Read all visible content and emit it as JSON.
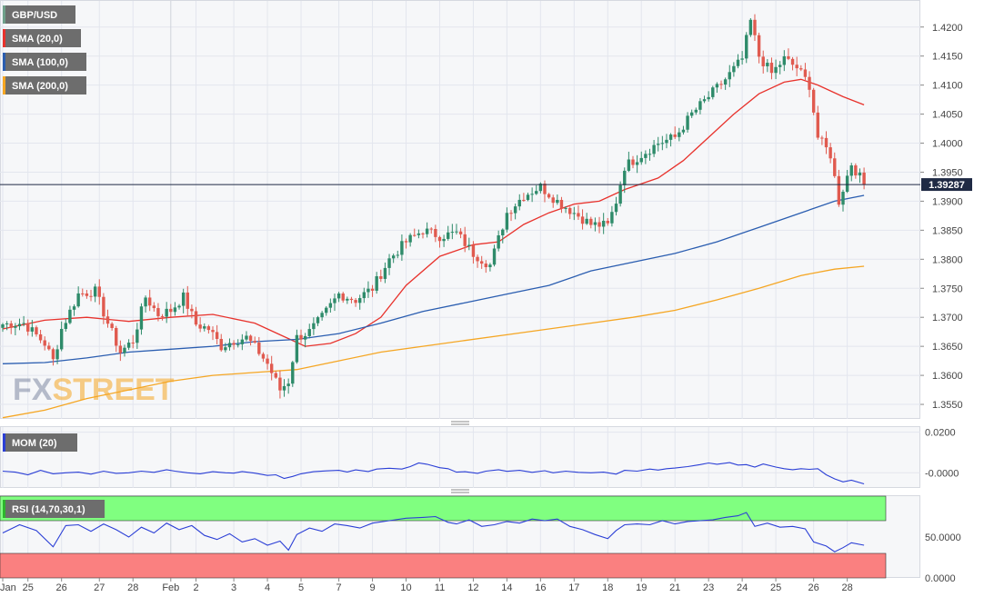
{
  "chart_data": {
    "type": "candlestick",
    "symbol": "GBP/USD",
    "watermark": "FXSTREET",
    "last_price": "1.39287",
    "last_value": 1.39287,
    "colors": {
      "up": "#2e8b6a",
      "down": "#e05a4f",
      "sma20": "#e8322c",
      "sma100": "#2a5db0",
      "sma200": "#f5a623",
      "mom": "#2b3fd6",
      "rsi": "#2b3fd6",
      "rsi_overbought": "#80ff80",
      "rsi_oversold": "#fa8080",
      "grid": "#e3e6ee",
      "background": "#f6f7f9",
      "legend_bg": "#6d6d6d"
    },
    "price_axis": {
      "ylim": [
        1.3525,
        1.4245
      ],
      "ticks": [
        "1.4200",
        "1.4150",
        "1.4100",
        "1.4050",
        "1.4000",
        "1.3950",
        "1.3900",
        "1.3850",
        "1.3800",
        "1.3750",
        "1.3700",
        "1.3650",
        "1.3600",
        "1.3550"
      ],
      "tick_values": [
        1.42,
        1.415,
        1.41,
        1.405,
        1.4,
        1.395,
        1.39,
        1.385,
        1.38,
        1.375,
        1.37,
        1.365,
        1.36,
        1.355
      ]
    },
    "x_axis": {
      "labels": [
        "Jan",
        "25",
        "26",
        "27",
        "28",
        "Feb",
        "2",
        "3",
        "4",
        "5",
        "7",
        "9",
        "10",
        "11",
        "12",
        "14",
        "16",
        "17",
        "18",
        "19",
        "21",
        "23",
        "24",
        "25",
        "26",
        "28"
      ],
      "label_bar": [
        0,
        6,
        14,
        23,
        31,
        40,
        46,
        55,
        63,
        71,
        80,
        88,
        96,
        104,
        112,
        120,
        128,
        136,
        144,
        152,
        160,
        168,
        176,
        184,
        193,
        201
      ]
    },
    "legends": {
      "main": [
        {
          "label": "GBP/USD",
          "color": "#6fa08a"
        },
        {
          "label": "SMA (20,0)",
          "color": "#e8322c"
        },
        {
          "label": "SMA (100,0)",
          "color": "#2a5db0"
        },
        {
          "label": "SMA (200,0)",
          "color": "#f5a623"
        }
      ],
      "mom": {
        "label": "MOM (20)",
        "color": "#2b3fd6"
      },
      "rsi": {
        "label": "RSI (14,70,30,1)",
        "color": "#2db52d"
      }
    },
    "mom_axis": {
      "ticks": [
        "0.0200",
        "-0.0000"
      ],
      "tick_values": [
        0.02,
        0.0
      ],
      "ylim": [
        -0.0075,
        0.0225
      ]
    },
    "rsi_axis": {
      "ticks": [
        "50.0000",
        "0.0000"
      ],
      "tick_values": [
        50,
        0
      ],
      "ylim": [
        0,
        100
      ],
      "overbought": 70,
      "oversold": 30
    },
    "anchors": [
      [
        0,
        1.3688
      ],
      [
        5,
        1.369
      ],
      [
        10,
        1.3655
      ],
      [
        12,
        1.3625
      ],
      [
        14,
        1.368
      ],
      [
        18,
        1.374
      ],
      [
        22,
        1.3745
      ],
      [
        25,
        1.369
      ],
      [
        28,
        1.364
      ],
      [
        31,
        1.366
      ],
      [
        34,
        1.3735
      ],
      [
        37,
        1.3705
      ],
      [
        40,
        1.3712
      ],
      [
        43,
        1.3735
      ],
      [
        46,
        1.3688
      ],
      [
        49,
        1.368
      ],
      [
        52,
        1.365
      ],
      [
        55,
        1.366
      ],
      [
        58,
        1.3665
      ],
      [
        61,
        1.364
      ],
      [
        63,
        1.362
      ],
      [
        66,
        1.3575
      ],
      [
        68,
        1.359
      ],
      [
        70,
        1.3665
      ],
      [
        73,
        1.3675
      ],
      [
        76,
        1.37
      ],
      [
        80,
        1.374
      ],
      [
        84,
        1.373
      ],
      [
        88,
        1.375
      ],
      [
        92,
        1.38
      ],
      [
        96,
        1.383
      ],
      [
        100,
        1.385
      ],
      [
        104,
        1.384
      ],
      [
        108,
        1.3845
      ],
      [
        112,
        1.381
      ],
      [
        116,
        1.379
      ],
      [
        120,
        1.388
      ],
      [
        124,
        1.391
      ],
      [
        128,
        1.3925
      ],
      [
        132,
        1.39
      ],
      [
        136,
        1.388
      ],
      [
        140,
        1.386
      ],
      [
        144,
        1.3858
      ],
      [
        146,
        1.39
      ],
      [
        148,
        1.396
      ],
      [
        152,
        1.398
      ],
      [
        156,
        1.4
      ],
      [
        160,
        1.401
      ],
      [
        164,
        1.405
      ],
      [
        168,
        1.408
      ],
      [
        172,
        1.411
      ],
      [
        176,
        1.4145
      ],
      [
        178,
        1.421
      ],
      [
        180,
        1.415
      ],
      [
        183,
        1.412
      ],
      [
        186,
        1.4145
      ],
      [
        189,
        1.413
      ],
      [
        192,
        1.41
      ],
      [
        194,
        1.401
      ],
      [
        197,
        1.398
      ],
      [
        199,
        1.39
      ],
      [
        202,
        1.3965
      ],
      [
        205,
        1.3929
      ]
    ],
    "series": [
      {
        "name": "SMA (20,0)",
        "color": "#e8322c",
        "points": [
          [
            0,
            1.368
          ],
          [
            10,
            1.3695
          ],
          [
            20,
            1.37
          ],
          [
            30,
            1.3693
          ],
          [
            40,
            1.37
          ],
          [
            50,
            1.3705
          ],
          [
            60,
            1.369
          ],
          [
            66,
            1.367
          ],
          [
            72,
            1.365
          ],
          [
            78,
            1.3655
          ],
          [
            84,
            1.3672
          ],
          [
            90,
            1.37
          ],
          [
            96,
            1.3755
          ],
          [
            104,
            1.3805
          ],
          [
            112,
            1.3825
          ],
          [
            118,
            1.383
          ],
          [
            124,
            1.386
          ],
          [
            130,
            1.388
          ],
          [
            136,
            1.3895
          ],
          [
            142,
            1.39
          ],
          [
            148,
            1.392
          ],
          [
            156,
            1.394
          ],
          [
            162,
            1.397
          ],
          [
            168,
            1.401
          ],
          [
            174,
            1.405
          ],
          [
            180,
            1.4085
          ],
          [
            186,
            1.4105
          ],
          [
            190,
            1.411
          ],
          [
            194,
            1.41
          ],
          [
            200,
            1.408
          ],
          [
            205,
            1.4066
          ]
        ]
      },
      {
        "name": "SMA (100,0)",
        "color": "#2a5db0",
        "points": [
          [
            0,
            1.362
          ],
          [
            10,
            1.3622
          ],
          [
            20,
            1.363
          ],
          [
            30,
            1.364
          ],
          [
            40,
            1.3645
          ],
          [
            50,
            1.365
          ],
          [
            60,
            1.3658
          ],
          [
            70,
            1.3662
          ],
          [
            80,
            1.3672
          ],
          [
            90,
            1.369
          ],
          [
            100,
            1.371
          ],
          [
            110,
            1.3725
          ],
          [
            120,
            1.374
          ],
          [
            130,
            1.3755
          ],
          [
            140,
            1.378
          ],
          [
            150,
            1.3795
          ],
          [
            160,
            1.381
          ],
          [
            170,
            1.383
          ],
          [
            180,
            1.3855
          ],
          [
            190,
            1.388
          ],
          [
            198,
            1.39
          ],
          [
            205,
            1.391
          ]
        ]
      },
      {
        "name": "SMA (200,0)",
        "color": "#f5a623",
        "points": [
          [
            0,
            1.3527
          ],
          [
            10,
            1.354
          ],
          [
            20,
            1.356
          ],
          [
            30,
            1.3575
          ],
          [
            40,
            1.359
          ],
          [
            50,
            1.36
          ],
          [
            60,
            1.3605
          ],
          [
            70,
            1.361
          ],
          [
            80,
            1.3625
          ],
          [
            90,
            1.364
          ],
          [
            100,
            1.365
          ],
          [
            110,
            1.366
          ],
          [
            120,
            1.367
          ],
          [
            130,
            1.368
          ],
          [
            140,
            1.369
          ],
          [
            150,
            1.37
          ],
          [
            160,
            1.3712
          ],
          [
            170,
            1.373
          ],
          [
            180,
            1.375
          ],
          [
            190,
            1.3772
          ],
          [
            198,
            1.3783
          ],
          [
            205,
            1.3788
          ]
        ]
      }
    ],
    "mom_points": [
      [
        0,
        0.0008
      ],
      [
        3,
        0.0003
      ],
      [
        6,
        -0.001
      ],
      [
        9,
        0.0012
      ],
      [
        12,
        -0.0005
      ],
      [
        15,
        0.0
      ],
      [
        18,
        0.0003
      ],
      [
        21,
        -0.0007
      ],
      [
        24,
        0.0008
      ],
      [
        27,
        -0.0003
      ],
      [
        30,
        0.0
      ],
      [
        33,
        0.0008
      ],
      [
        36,
        0.0002
      ],
      [
        39,
        0.0015
      ],
      [
        41,
        0.0008
      ],
      [
        44,
        0.0
      ],
      [
        47,
        -0.0005
      ],
      [
        50,
        0.0005
      ],
      [
        53,
        0.0
      ],
      [
        55,
        -0.0002
      ],
      [
        57,
        0.0006
      ],
      [
        60,
        -0.0002
      ],
      [
        63,
        -0.0013
      ],
      [
        65,
        -0.001
      ],
      [
        67,
        -0.0028
      ],
      [
        69,
        -0.0018
      ],
      [
        71,
        -0.0005
      ],
      [
        74,
        0.0005
      ],
      [
        77,
        0.0009
      ],
      [
        80,
        0.0012
      ],
      [
        82,
        0.0004
      ],
      [
        84,
        0.0014
      ],
      [
        87,
        0.0006
      ],
      [
        89,
        0.0018
      ],
      [
        92,
        0.0022
      ],
      [
        95,
        0.0018
      ],
      [
        97,
        0.003
      ],
      [
        99,
        0.0048
      ],
      [
        101,
        0.0042
      ],
      [
        104,
        0.0025
      ],
      [
        106,
        0.002
      ],
      [
        108,
        0.0003
      ],
      [
        110,
        0.0005
      ],
      [
        113,
        -0.0003
      ],
      [
        115,
        0.0008
      ],
      [
        118,
        0.0015
      ],
      [
        120,
        0.0007
      ],
      [
        123,
        0.0012
      ],
      [
        126,
        0.0002
      ],
      [
        129,
        0.001
      ],
      [
        131,
        0.0
      ],
      [
        134,
        0.0008
      ],
      [
        137,
        0.0002
      ],
      [
        140,
        0.0
      ],
      [
        143,
        0.0003
      ],
      [
        146,
        -0.0007
      ],
      [
        148,
        0.0012
      ],
      [
        151,
        0.0008
      ],
      [
        154,
        0.0018
      ],
      [
        156,
        0.0013
      ],
      [
        158,
        0.002
      ],
      [
        160,
        0.0023
      ],
      [
        163,
        0.003
      ],
      [
        166,
        0.004
      ],
      [
        168,
        0.0048
      ],
      [
        170,
        0.0042
      ],
      [
        173,
        0.005
      ],
      [
        175,
        0.0038
      ],
      [
        177,
        0.004
      ],
      [
        179,
        0.0028
      ],
      [
        181,
        0.0043
      ],
      [
        184,
        0.0028
      ],
      [
        186,
        0.002
      ],
      [
        188,
        0.0015
      ],
      [
        190,
        0.002
      ],
      [
        192,
        0.0017
      ],
      [
        194,
        0.002
      ],
      [
        196,
        -0.001
      ],
      [
        198,
        -0.003
      ],
      [
        200,
        -0.0045
      ],
      [
        202,
        -0.0037
      ],
      [
        205,
        -0.0055
      ]
    ],
    "rsi_points": [
      [
        0,
        55
      ],
      [
        4,
        65
      ],
      [
        8,
        58
      ],
      [
        12,
        38
      ],
      [
        15,
        64
      ],
      [
        18,
        65
      ],
      [
        21,
        57
      ],
      [
        24,
        66
      ],
      [
        27,
        59
      ],
      [
        30,
        50
      ],
      [
        33,
        62
      ],
      [
        36,
        55
      ],
      [
        39,
        67
      ],
      [
        42,
        59
      ],
      [
        45,
        64
      ],
      [
        48,
        52
      ],
      [
        51,
        47
      ],
      [
        54,
        54
      ],
      [
        57,
        44
      ],
      [
        60,
        48
      ],
      [
        63,
        40
      ],
      [
        66,
        45
      ],
      [
        68,
        34
      ],
      [
        70,
        53
      ],
      [
        73,
        61
      ],
      [
        76,
        57
      ],
      [
        79,
        66
      ],
      [
        82,
        64
      ],
      [
        85,
        61
      ],
      [
        88,
        67
      ],
      [
        92,
        70
      ],
      [
        96,
        73
      ],
      [
        100,
        74
      ],
      [
        103,
        75
      ],
      [
        106,
        68
      ],
      [
        108,
        66
      ],
      [
        111,
        71
      ],
      [
        114,
        63
      ],
      [
        117,
        65
      ],
      [
        120,
        69
      ],
      [
        123,
        67
      ],
      [
        126,
        72
      ],
      [
        129,
        70
      ],
      [
        132,
        72
      ],
      [
        135,
        63
      ],
      [
        138,
        59
      ],
      [
        141,
        53
      ],
      [
        144,
        48
      ],
      [
        146,
        58
      ],
      [
        148,
        65
      ],
      [
        151,
        66
      ],
      [
        154,
        65
      ],
      [
        157,
        70
      ],
      [
        160,
        66
      ],
      [
        163,
        69
      ],
      [
        166,
        70
      ],
      [
        169,
        71
      ],
      [
        172,
        74
      ],
      [
        175,
        76
      ],
      [
        177,
        80
      ],
      [
        179,
        63
      ],
      [
        182,
        67
      ],
      [
        185,
        62
      ],
      [
        188,
        63
      ],
      [
        191,
        60
      ],
      [
        193,
        44
      ],
      [
        196,
        39
      ],
      [
        198,
        32
      ],
      [
        200,
        37
      ],
      [
        202,
        43
      ],
      [
        205,
        40
      ]
    ]
  }
}
